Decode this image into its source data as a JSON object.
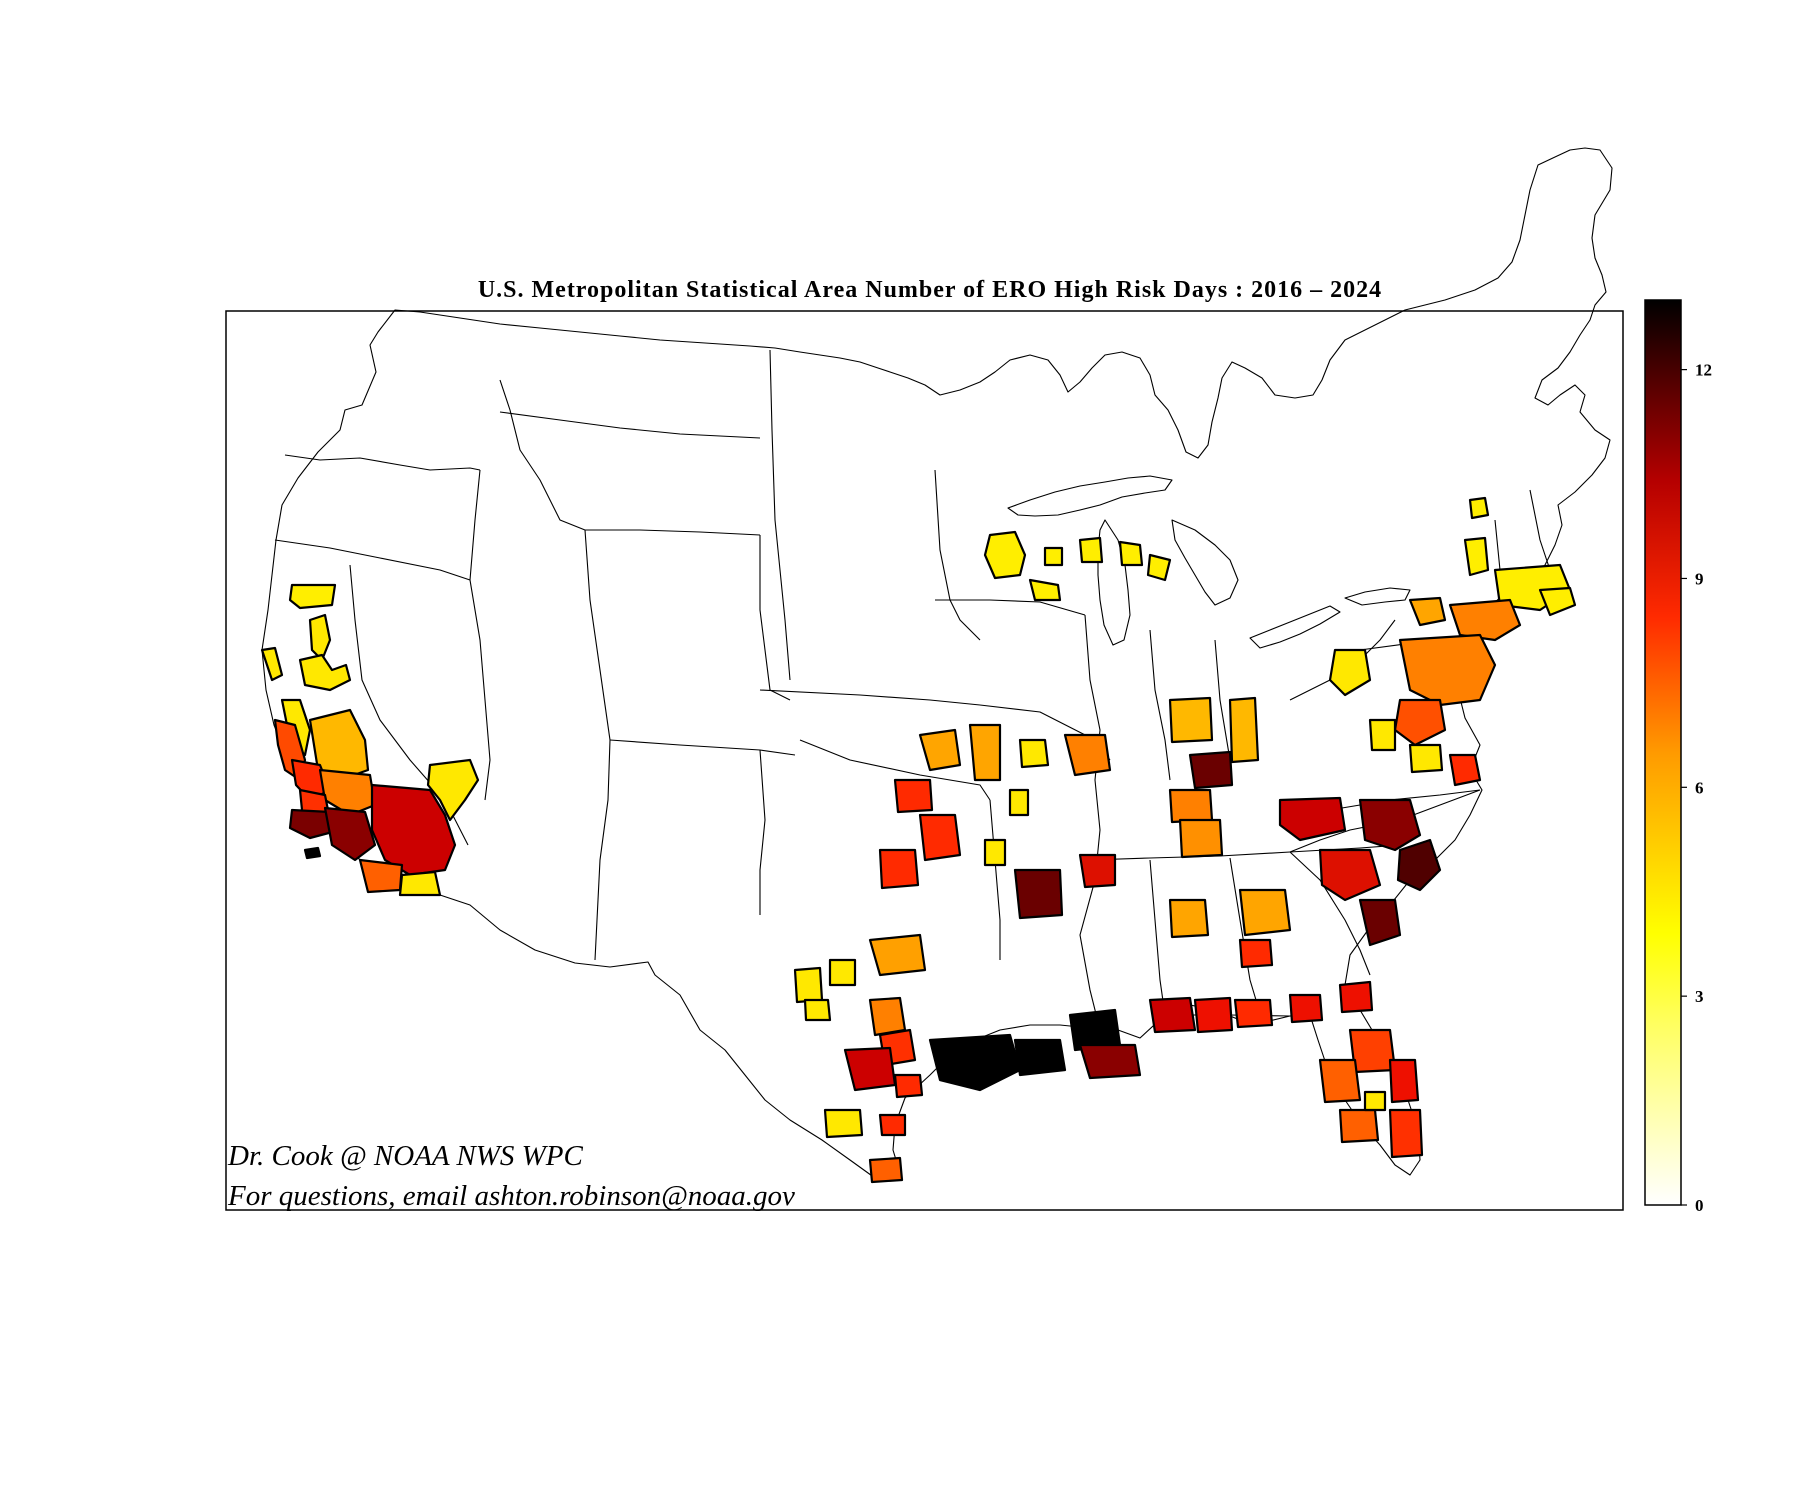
{
  "title": "U.S.  Metropolitan  Statistical  Area  Number  of  ERO  High  Risk  Days :  2016 – 2024",
  "credit_line1": "Dr.  Cook @ NOAA NWS WPC",
  "credit_line2": "For  questions,  email  ashton.robinson@noaa.gov",
  "colorbar": {
    "min": 0,
    "max": 13,
    "ticks": [
      0,
      3,
      6,
      9,
      12
    ],
    "colormap": "hot_r",
    "stops": [
      "#ffffff",
      "#ffff00",
      "#ff8000",
      "#ff0000",
      "#800000",
      "#000000"
    ]
  },
  "map": {
    "projection": "Lambert conformal conic (CONUS)",
    "region": "Contiguous United States",
    "layer": "Metropolitan Statistical Areas shaded by number of ERO High Risk days",
    "highest_values_region": "Gulf Coast (southeast Texas / southwest Louisiana)"
  }
}
